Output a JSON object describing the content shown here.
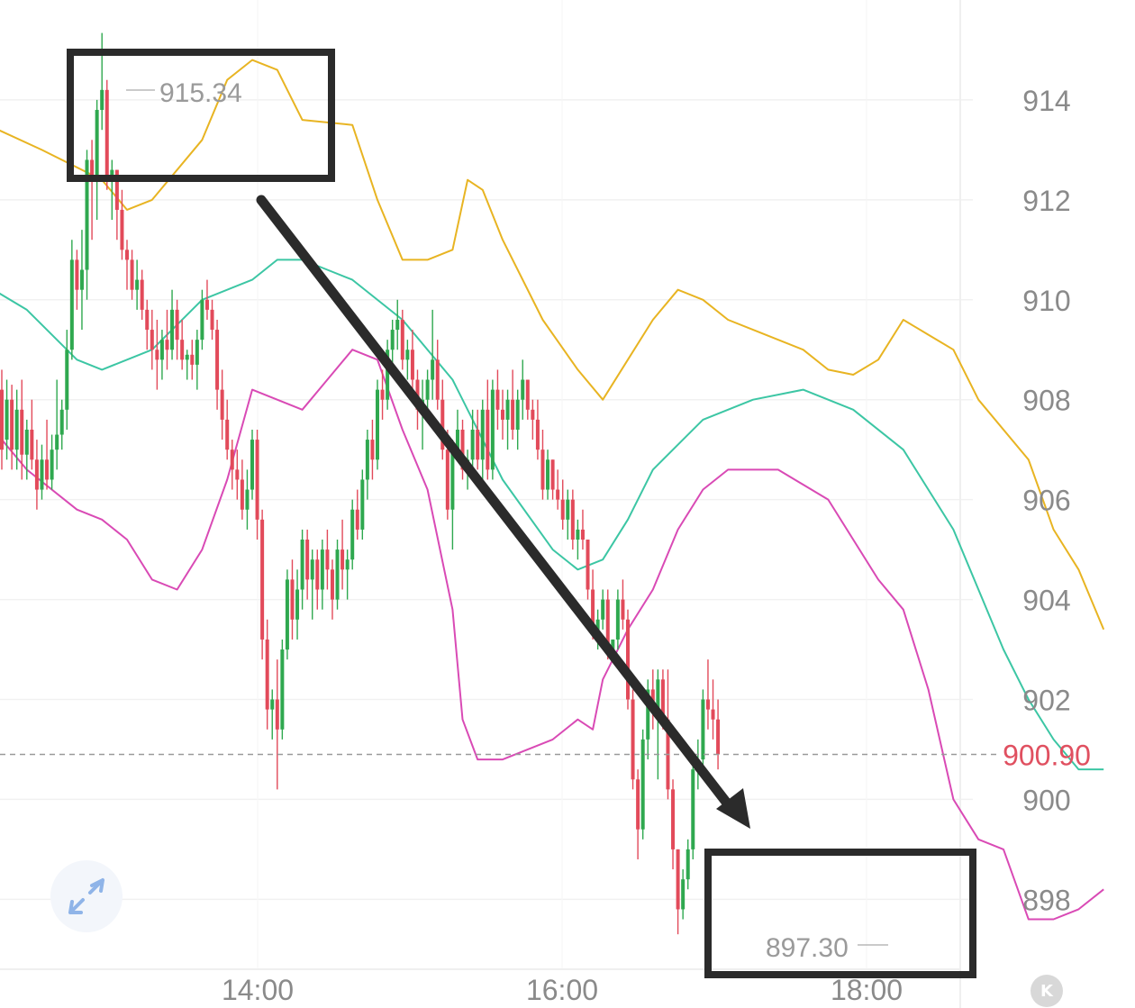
{
  "chart_data": {
    "type": "candlestick",
    "y_ticks": [
      "914",
      "912",
      "910",
      "908",
      "906",
      "904",
      "902",
      "900",
      "898"
    ],
    "ylim": [
      896.6,
      916.0
    ],
    "x_ticks": [
      "14:00",
      "16:00",
      "18:00"
    ],
    "last_price": "900.90",
    "high_label": "915.34",
    "low_label": "897.30",
    "colors": {
      "up": "#2fa84f",
      "down": "#e24a5a",
      "upper_band": "#e8b422",
      "middle_band": "#3cc6a4",
      "lower_band": "#d94ab5",
      "last_price": "#e05060",
      "annotation": "#2b2b2b"
    },
    "candles": [
      [
        908.2,
        908.6,
        906.6,
        907.0
      ],
      [
        907.2,
        908.4,
        906.8,
        908.0
      ],
      [
        908.0,
        908.3,
        906.6,
        907.0
      ],
      [
        907.0,
        908.2,
        906.6,
        907.8
      ],
      [
        907.8,
        908.4,
        906.4,
        906.9
      ],
      [
        906.9,
        907.6,
        906.4,
        907.4
      ],
      [
        907.4,
        908.0,
        906.6,
        906.8
      ],
      [
        906.8,
        907.2,
        905.8,
        906.2
      ],
      [
        906.2,
        907.1,
        906.0,
        906.8
      ],
      [
        906.8,
        907.6,
        906.2,
        906.4
      ],
      [
        906.4,
        907.3,
        906.2,
        907.0
      ],
      [
        907.0,
        908.4,
        906.6,
        907.3
      ],
      [
        907.3,
        908.0,
        907.0,
        907.8
      ],
      [
        907.8,
        909.4,
        907.4,
        909.0
      ],
      [
        909.0,
        911.2,
        908.8,
        910.8
      ],
      [
        910.8,
        911.0,
        909.8,
        910.2
      ],
      [
        910.2,
        911.4,
        909.4,
        910.6
      ],
      [
        910.6,
        913.0,
        910.0,
        912.8
      ],
      [
        912.8,
        913.2,
        911.2,
        912.4
      ],
      [
        912.4,
        914.0,
        911.6,
        913.8
      ],
      [
        913.8,
        915.34,
        913.4,
        914.2
      ],
      [
        914.2,
        914.4,
        912.2,
        912.4
      ],
      [
        912.4,
        912.8,
        911.6,
        912.6
      ],
      [
        912.6,
        912.6,
        911.2,
        911.8
      ],
      [
        911.8,
        912.2,
        910.8,
        911.0
      ],
      [
        911.0,
        911.2,
        910.2,
        910.8
      ],
      [
        910.8,
        911.0,
        910.0,
        910.2
      ],
      [
        910.2,
        910.8,
        909.8,
        910.4
      ],
      [
        910.4,
        910.6,
        909.6,
        909.8
      ],
      [
        909.8,
        910.0,
        909.0,
        909.4
      ],
      [
        909.4,
        909.8,
        908.6,
        909.0
      ],
      [
        909.0,
        909.6,
        908.2,
        908.8
      ],
      [
        908.8,
        909.4,
        908.4,
        909.2
      ],
      [
        909.2,
        909.8,
        908.6,
        909.0
      ],
      [
        909.0,
        910.2,
        908.8,
        909.8
      ],
      [
        909.8,
        910.0,
        908.8,
        909.2
      ],
      [
        909.2,
        909.6,
        908.6,
        908.8
      ],
      [
        908.8,
        909.0,
        908.4,
        908.9
      ],
      [
        908.9,
        909.2,
        908.4,
        908.7
      ],
      [
        908.7,
        909.4,
        908.2,
        909.2
      ],
      [
        909.2,
        910.2,
        909.0,
        910.0
      ],
      [
        910.0,
        910.4,
        909.6,
        909.8
      ],
      [
        909.8,
        910.0,
        909.2,
        909.4
      ],
      [
        909.4,
        909.6,
        907.8,
        908.2
      ],
      [
        908.2,
        908.6,
        907.2,
        907.6
      ],
      [
        907.6,
        908.0,
        906.8,
        907.0
      ],
      [
        907.0,
        907.2,
        906.2,
        906.6
      ],
      [
        906.6,
        907.0,
        906.0,
        906.4
      ],
      [
        906.4,
        906.8,
        905.6,
        905.8
      ],
      [
        905.8,
        906.6,
        905.4,
        906.2
      ],
      [
        906.2,
        907.4,
        906.0,
        907.2
      ],
      [
        907.2,
        907.4,
        905.2,
        905.6
      ],
      [
        905.6,
        905.8,
        902.8,
        903.2
      ],
      [
        903.2,
        903.6,
        901.4,
        901.8
      ],
      [
        901.8,
        902.2,
        901.2,
        902.0
      ],
      [
        902.0,
        902.8,
        900.2,
        901.4
      ],
      [
        901.4,
        903.2,
        901.2,
        903.0
      ],
      [
        903.0,
        904.6,
        902.8,
        904.4
      ],
      [
        904.4,
        904.8,
        903.2,
        903.6
      ],
      [
        903.6,
        904.6,
        903.2,
        904.2
      ],
      [
        904.2,
        905.4,
        903.8,
        905.2
      ],
      [
        905.2,
        905.4,
        904.0,
        904.4
      ],
      [
        904.4,
        905.0,
        903.6,
        904.8
      ],
      [
        904.8,
        905.0,
        903.8,
        904.2
      ],
      [
        904.2,
        905.2,
        903.8,
        905.0
      ],
      [
        905.0,
        905.4,
        904.2,
        904.6
      ],
      [
        904.6,
        904.8,
        903.6,
        904.0
      ],
      [
        904.0,
        905.2,
        903.8,
        905.0
      ],
      [
        905.0,
        905.6,
        904.2,
        904.6
      ],
      [
        904.6,
        905.0,
        904.0,
        904.8
      ],
      [
        904.8,
        906.0,
        904.6,
        905.8
      ],
      [
        905.8,
        906.2,
        905.2,
        905.4
      ],
      [
        905.4,
        906.6,
        905.2,
        906.4
      ],
      [
        906.4,
        907.4,
        906.0,
        907.2
      ],
      [
        907.2,
        907.6,
        906.4,
        906.8
      ],
      [
        906.8,
        908.4,
        906.6,
        908.2
      ],
      [
        908.2,
        908.6,
        907.6,
        908.0
      ],
      [
        908.0,
        909.2,
        907.8,
        909.0
      ],
      [
        909.0,
        909.6,
        908.6,
        909.4
      ],
      [
        909.4,
        910.0,
        909.0,
        909.6
      ],
      [
        909.6,
        909.8,
        908.6,
        908.8
      ],
      [
        908.8,
        909.2,
        908.4,
        909.0
      ],
      [
        909.0,
        909.4,
        908.2,
        908.4
      ],
      [
        908.4,
        908.6,
        907.4,
        907.8
      ],
      [
        907.8,
        908.4,
        907.0,
        908.0
      ],
      [
        908.0,
        908.6,
        907.6,
        908.4
      ],
      [
        908.4,
        909.8,
        908.0,
        908.8
      ],
      [
        908.8,
        909.2,
        907.8,
        908.0
      ],
      [
        908.0,
        908.4,
        906.8,
        907.0
      ],
      [
        907.0,
        907.4,
        905.6,
        905.8
      ],
      [
        905.8,
        907.2,
        905.0,
        907.0
      ],
      [
        907.0,
        907.8,
        906.8,
        907.4
      ],
      [
        907.4,
        907.6,
        906.4,
        906.6
      ],
      [
        906.6,
        907.0,
        906.2,
        906.8
      ],
      [
        906.8,
        907.8,
        906.6,
        907.4
      ],
      [
        907.4,
        907.8,
        906.6,
        906.8
      ],
      [
        906.8,
        908.0,
        906.4,
        907.8
      ],
      [
        907.8,
        908.4,
        906.4,
        906.6
      ],
      [
        906.6,
        908.4,
        906.4,
        908.2
      ],
      [
        908.2,
        908.6,
        907.4,
        907.8
      ],
      [
        907.8,
        908.2,
        907.2,
        907.6
      ],
      [
        907.6,
        908.2,
        907.0,
        908.0
      ],
      [
        908.0,
        908.6,
        907.2,
        907.4
      ],
      [
        907.4,
        908.2,
        907.0,
        908.0
      ],
      [
        908.0,
        908.8,
        907.6,
        908.4
      ],
      [
        908.4,
        908.4,
        907.6,
        907.8
      ],
      [
        907.8,
        908.0,
        907.2,
        907.6
      ],
      [
        907.6,
        908.0,
        906.8,
        907.0
      ],
      [
        907.0,
        907.4,
        906.0,
        906.2
      ],
      [
        906.2,
        907.0,
        906.0,
        906.8
      ],
      [
        906.8,
        906.8,
        906.0,
        906.2
      ],
      [
        906.2,
        906.6,
        905.8,
        906.0
      ],
      [
        906.0,
        906.4,
        905.4,
        905.6
      ],
      [
        905.6,
        906.2,
        905.2,
        906.0
      ],
      [
        906.0,
        906.2,
        905.0,
        905.2
      ],
      [
        905.2,
        905.6,
        904.8,
        905.4
      ],
      [
        905.4,
        905.8,
        905.0,
        905.2
      ],
      [
        905.2,
        905.2,
        904.0,
        904.2
      ],
      [
        904.2,
        904.6,
        903.2,
        903.4
      ],
      [
        903.4,
        903.8,
        903.0,
        903.6
      ],
      [
        903.6,
        904.2,
        903.4,
        904.0
      ],
      [
        904.0,
        904.2,
        902.8,
        903.0
      ],
      [
        903.0,
        903.2,
        902.8,
        903.2
      ],
      [
        903.2,
        904.2,
        903.0,
        904.0
      ],
      [
        904.0,
        904.4,
        903.4,
        903.6
      ],
      [
        903.6,
        903.8,
        901.8,
        902.0
      ],
      [
        902.0,
        902.2,
        900.2,
        900.4
      ],
      [
        900.4,
        900.6,
        898.8,
        899.4
      ],
      [
        899.4,
        901.4,
        899.2,
        901.2
      ],
      [
        901.2,
        902.4,
        900.8,
        902.2
      ],
      [
        902.2,
        902.6,
        901.4,
        901.8
      ],
      [
        901.8,
        902.6,
        900.4,
        902.4
      ],
      [
        902.4,
        902.6,
        901.4,
        901.6
      ],
      [
        901.6,
        902.6,
        900.0,
        900.2
      ],
      [
        900.2,
        900.4,
        898.6,
        899.0
      ],
      [
        899.0,
        899.0,
        897.3,
        897.8
      ],
      [
        897.8,
        898.6,
        897.6,
        898.4
      ],
      [
        898.4,
        899.2,
        898.2,
        899.0
      ],
      [
        899.0,
        900.8,
        898.8,
        900.6
      ],
      [
        900.6,
        901.2,
        900.2,
        900.8
      ],
      [
        900.8,
        902.2,
        900.6,
        902.0
      ],
      [
        902.0,
        902.8,
        901.4,
        901.8
      ],
      [
        901.8,
        902.4,
        901.2,
        901.6
      ],
      [
        901.6,
        902.0,
        900.6,
        900.9
      ]
    ],
    "upper_band": [
      [
        -5,
        913.6
      ],
      [
        8,
        913.0
      ],
      [
        20,
        912.4
      ],
      [
        25,
        911.8
      ],
      [
        30,
        912.0
      ],
      [
        40,
        913.2
      ],
      [
        45,
        914.4
      ],
      [
        50,
        914.8
      ],
      [
        55,
        914.6
      ],
      [
        58,
        914.0
      ],
      [
        60,
        913.6
      ],
      [
        70,
        913.5
      ],
      [
        75,
        912.0
      ],
      [
        80,
        910.8
      ],
      [
        85,
        910.8
      ],
      [
        90,
        911.0
      ],
      [
        93,
        912.4
      ],
      [
        96,
        912.2
      ],
      [
        100,
        911.2
      ],
      [
        108,
        909.6
      ],
      [
        115,
        908.6
      ],
      [
        120,
        908.0
      ],
      [
        125,
        908.8
      ],
      [
        130,
        909.6
      ],
      [
        135,
        910.2
      ],
      [
        140,
        910.0
      ],
      [
        145,
        909.6
      ],
      [
        150,
        909.4
      ],
      [
        160,
        909.0
      ],
      [
        165,
        908.6
      ],
      [
        170,
        908.5
      ],
      [
        175,
        908.8
      ],
      [
        180,
        909.6
      ],
      [
        185,
        909.3
      ],
      [
        190,
        909.0
      ],
      [
        195,
        908.0
      ],
      [
        205,
        906.8
      ],
      [
        210,
        905.4
      ],
      [
        215,
        904.6
      ],
      [
        220,
        903.4
      ]
    ],
    "middle_band": [
      [
        -5,
        910.4
      ],
      [
        5,
        909.8
      ],
      [
        15,
        908.8
      ],
      [
        20,
        908.6
      ],
      [
        30,
        909.0
      ],
      [
        40,
        910.0
      ],
      [
        50,
        910.4
      ],
      [
        55,
        910.8
      ],
      [
        60,
        910.8
      ],
      [
        65,
        910.6
      ],
      [
        70,
        910.4
      ],
      [
        80,
        909.6
      ],
      [
        90,
        908.4
      ],
      [
        100,
        906.4
      ],
      [
        110,
        905.0
      ],
      [
        115,
        904.6
      ],
      [
        120,
        904.8
      ],
      [
        125,
        905.6
      ],
      [
        130,
        906.6
      ],
      [
        140,
        907.6
      ],
      [
        150,
        908.0
      ],
      [
        160,
        908.2
      ],
      [
        170,
        907.8
      ],
      [
        180,
        907.0
      ],
      [
        190,
        905.4
      ],
      [
        200,
        903.0
      ],
      [
        205,
        902.0
      ],
      [
        210,
        901.2
      ],
      [
        215,
        900.6
      ],
      [
        220,
        900.6
      ]
    ],
    "lower_band": [
      [
        -5,
        907.8
      ],
      [
        5,
        906.6
      ],
      [
        15,
        905.8
      ],
      [
        20,
        905.6
      ],
      [
        25,
        905.2
      ],
      [
        30,
        904.4
      ],
      [
        35,
        904.2
      ],
      [
        40,
        905.0
      ],
      [
        45,
        906.4
      ],
      [
        50,
        908.2
      ],
      [
        55,
        908.0
      ],
      [
        60,
        907.8
      ],
      [
        65,
        908.4
      ],
      [
        70,
        909.0
      ],
      [
        75,
        908.8
      ],
      [
        80,
        907.4
      ],
      [
        85,
        906.2
      ],
      [
        90,
        903.8
      ],
      [
        92,
        901.6
      ],
      [
        95,
        900.8
      ],
      [
        100,
        900.8
      ],
      [
        110,
        901.2
      ],
      [
        115,
        901.6
      ],
      [
        118,
        901.4
      ],
      [
        120,
        902.4
      ],
      [
        125,
        903.4
      ],
      [
        130,
        904.2
      ],
      [
        135,
        905.4
      ],
      [
        140,
        906.2
      ],
      [
        145,
        906.6
      ],
      [
        155,
        906.6
      ],
      [
        165,
        906.0
      ],
      [
        175,
        904.4
      ],
      [
        180,
        903.8
      ],
      [
        185,
        902.2
      ],
      [
        190,
        900.0
      ],
      [
        195,
        899.2
      ],
      [
        200,
        899.0
      ],
      [
        205,
        897.6
      ],
      [
        210,
        897.6
      ],
      [
        215,
        897.8
      ],
      [
        220,
        898.2
      ]
    ]
  }
}
